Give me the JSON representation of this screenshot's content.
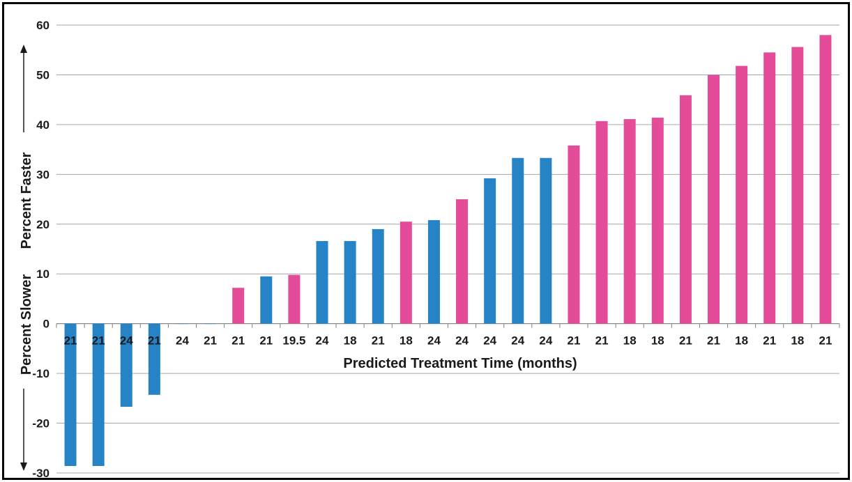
{
  "chart_data": {
    "type": "bar",
    "xlabel": "Predicted Treatment Time (months)",
    "ylabel_top": "Percent Faster",
    "ylabel_bottom": "Percent Slower",
    "ylim": [
      -30,
      60
    ],
    "yticks": [
      60,
      50,
      40,
      30,
      20,
      10,
      0,
      -10,
      -20,
      -30
    ],
    "grid": true,
    "colors": {
      "blue": "#2683c6",
      "pink": "#e44c9a"
    },
    "categories": [
      "21",
      "21",
      "24",
      "21",
      "24",
      "21",
      "21",
      "21",
      "19.5",
      "24",
      "18",
      "21",
      "18",
      "24",
      "24",
      "24",
      "24",
      "24",
      "21",
      "21",
      "18",
      "18",
      "21",
      "21",
      "18",
      "21",
      "18",
      "21"
    ],
    "values": [
      -28.6,
      -28.6,
      -16.7,
      -14.3,
      0,
      0,
      7.2,
      9.5,
      9.8,
      16.6,
      16.6,
      19.0,
      20.5,
      20.8,
      25.0,
      29.2,
      33.3,
      33.3,
      35.8,
      40.7,
      41.1,
      41.4,
      45.9,
      50.0,
      51.8,
      54.5,
      55.6,
      58.0
    ],
    "bar_colors": [
      "blue",
      "blue",
      "blue",
      "blue",
      "blue",
      "blue",
      "pink",
      "blue",
      "pink",
      "blue",
      "blue",
      "blue",
      "pink",
      "blue",
      "pink",
      "blue",
      "blue",
      "blue",
      "pink",
      "pink",
      "pink",
      "pink",
      "pink",
      "pink",
      "pink",
      "pink",
      "pink",
      "pink"
    ]
  }
}
